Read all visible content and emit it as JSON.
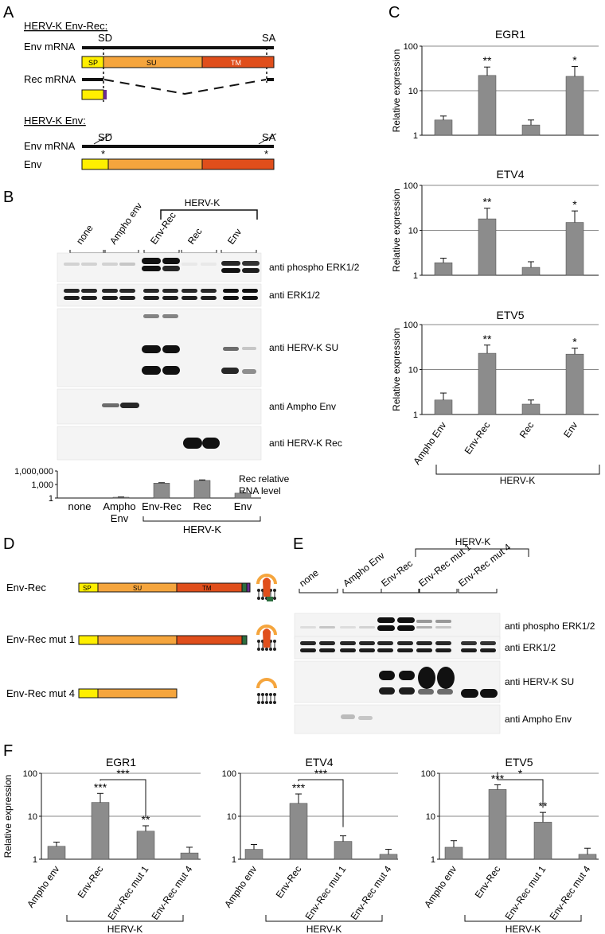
{
  "panels": {
    "A": {
      "letter": "A",
      "title1": "HERV-K Env-Rec:",
      "env_mrna": "Env mRNA",
      "rec_mrna": "Rec mRNA",
      "sd": "SD",
      "sa": "SA",
      "sp": "SP",
      "su": "SU",
      "tm": "TM",
      "title2": "HERV-K Env:",
      "env": "Env",
      "star": "*",
      "colors": {
        "sp": "#ffef00",
        "su": "#f5a53d",
        "tm": "#e04e1b",
        "rec_tail": "#6a2c91"
      }
    },
    "B": {
      "letter": "B",
      "herv_group": "HERV-K",
      "lanes": [
        "none",
        "Ampho env",
        "Env-Rec",
        "Rec",
        "Env"
      ],
      "blots": [
        "anti phospho ERK1/2",
        "anti ERK1/2",
        "anti HERV-K SU",
        "anti Ampho Env",
        "anti HERV-K Rec"
      ],
      "rna_label_1": "Rec relative",
      "rna_label_2": "RNA level",
      "yticks": [
        "1,000,000",
        "1,000",
        "1"
      ],
      "x_labels": [
        "none",
        "Ampho",
        "Env",
        "Env-Rec",
        "Rec",
        "Env"
      ],
      "bracket_label": "HERV-K"
    },
    "C": {
      "letter": "C",
      "ylabel": "Relative expression",
      "yticks": [
        "100",
        "10",
        "1"
      ],
      "bracket_label": "HERV-K"
    },
    "D": {
      "letter": "D",
      "rows": [
        "Env-Rec",
        "Env-Rec mut 1",
        "Env-Rec mut 4"
      ],
      "sp": "SP",
      "su": "SU",
      "tm": "TM"
    },
    "E": {
      "letter": "E",
      "herv_group": "HERV-K",
      "lanes": [
        "none",
        "Ampho Env",
        "Env-Rec",
        "Env-Rec mut 1",
        "Env-Rec mut 4"
      ],
      "blots": [
        "anti phospho ERK1/2",
        "anti ERK1/2",
        "anti HERV-K SU",
        "anti Ampho Env"
      ]
    },
    "F": {
      "letter": "F",
      "ylabel": "Relative expression",
      "yticks": [
        "100",
        "10",
        "1"
      ],
      "bracket_label": "HERV-K"
    }
  },
  "chart_data": [
    {
      "type": "bar",
      "panel": "B-inset",
      "scale": "log",
      "ylim": [
        1,
        1000000
      ],
      "categories": [
        "none",
        "Ampho Env",
        "Env-Rec",
        "Rec",
        "Env"
      ],
      "values": [
        1,
        1.5,
        2000,
        8000,
        12
      ],
      "errors": [
        0,
        0.2,
        500,
        2500,
        3
      ]
    },
    {
      "type": "bar",
      "panel": "C",
      "title": "EGR1",
      "ylabel": "Relative expression",
      "scale": "log",
      "ylim": [
        1,
        100
      ],
      "categories": [
        "Ampho Env",
        "Env-Rec",
        "Rec",
        "Env"
      ],
      "values": [
        2.2,
        22,
        1.7,
        21
      ],
      "errors": [
        0.5,
        12,
        0.5,
        14
      ],
      "annotations": [
        "",
        "**",
        "",
        "*"
      ]
    },
    {
      "type": "bar",
      "panel": "C",
      "title": "ETV4",
      "ylabel": "Relative expression",
      "scale": "log",
      "ylim": [
        1,
        100
      ],
      "categories": [
        "Ampho Env",
        "Env-Rec",
        "Rec",
        "Env"
      ],
      "values": [
        1.9,
        18,
        1.5,
        15
      ],
      "errors": [
        0.5,
        13,
        0.5,
        12
      ],
      "annotations": [
        "",
        "**",
        "",
        "*"
      ]
    },
    {
      "type": "bar",
      "panel": "C",
      "title": "ETV5",
      "ylabel": "Relative expression",
      "scale": "log",
      "ylim": [
        1,
        100
      ],
      "categories": [
        "Ampho Env",
        "Env-Rec",
        "Rec",
        "Env"
      ],
      "values": [
        2.1,
        23,
        1.7,
        22
      ],
      "errors": [
        0.9,
        12,
        0.4,
        8
      ],
      "annotations": [
        "",
        "**",
        "",
        "*"
      ]
    },
    {
      "type": "bar",
      "panel": "F",
      "title": "EGR1",
      "ylabel": "Relative expression",
      "scale": "log",
      "ylim": [
        1,
        100
      ],
      "categories": [
        "Ampho env",
        "Env-Rec",
        "Env-Rec mut 1",
        "Env-Rec mut 4"
      ],
      "values": [
        2.0,
        21,
        4.5,
        1.4
      ],
      "errors": [
        0.5,
        13,
        1.5,
        0.5
      ],
      "annotations": [
        "",
        "***",
        "**",
        ""
      ],
      "comparison": {
        "from": 1,
        "to": 2,
        "label": "***"
      }
    },
    {
      "type": "bar",
      "panel": "F",
      "title": "ETV4",
      "scale": "log",
      "ylim": [
        1,
        100
      ],
      "categories": [
        "Ampho env",
        "Env-Rec",
        "Env-Rec mut 1",
        "Env-Rec mut 4"
      ],
      "values": [
        1.7,
        20,
        2.6,
        1.3
      ],
      "errors": [
        0.5,
        13,
        0.9,
        0.4
      ],
      "annotations": [
        "",
        "***",
        "",
        ""
      ],
      "comparison": {
        "from": 1,
        "to": 2,
        "label": "***"
      }
    },
    {
      "type": "bar",
      "panel": "F",
      "title": "ETV5",
      "scale": "log",
      "ylim": [
        1,
        100
      ],
      "categories": [
        "Ampho env",
        "Env-Rec",
        "Env-Rec mut 1",
        "Env-Rec mut 4"
      ],
      "values": [
        1.9,
        42,
        7.3,
        1.3
      ],
      "errors": [
        0.8,
        12,
        5,
        0.5
      ],
      "annotations": [
        "",
        "***",
        "**",
        ""
      ],
      "comparison": {
        "from": 1,
        "to": 2,
        "label": "*"
      }
    }
  ]
}
